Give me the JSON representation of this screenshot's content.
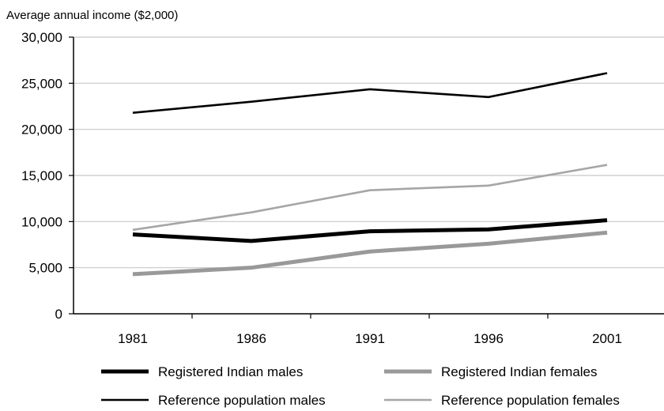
{
  "chart_data": {
    "type": "line",
    "title": "",
    "ylabel": "Average annual income ($2,000)",
    "xlabel": "",
    "categories": [
      "1981",
      "1986",
      "1991",
      "1996",
      "2001"
    ],
    "ylim": [
      0,
      30000
    ],
    "yticks": [
      "0",
      "5,000",
      "10,000",
      "15,000",
      "20,000",
      "25,000",
      "30,000"
    ],
    "grid": true,
    "legend_position": "bottom",
    "series": [
      {
        "name": "Registered Indian males",
        "values": [
          8600,
          7900,
          8950,
          9150,
          10150
        ],
        "color": "#000000",
        "weight": "thick"
      },
      {
        "name": "Registered Indian females",
        "values": [
          4300,
          5000,
          6750,
          7600,
          8800
        ],
        "color": "#999999",
        "weight": "thick"
      },
      {
        "name": "Reference population males",
        "values": [
          21800,
          23000,
          24350,
          23500,
          26100
        ],
        "color": "#000000",
        "weight": "thin"
      },
      {
        "name": "Reference population females",
        "values": [
          9100,
          11000,
          13400,
          13900,
          16150
        ],
        "color": "#a6a6a6",
        "weight": "thin"
      }
    ]
  }
}
